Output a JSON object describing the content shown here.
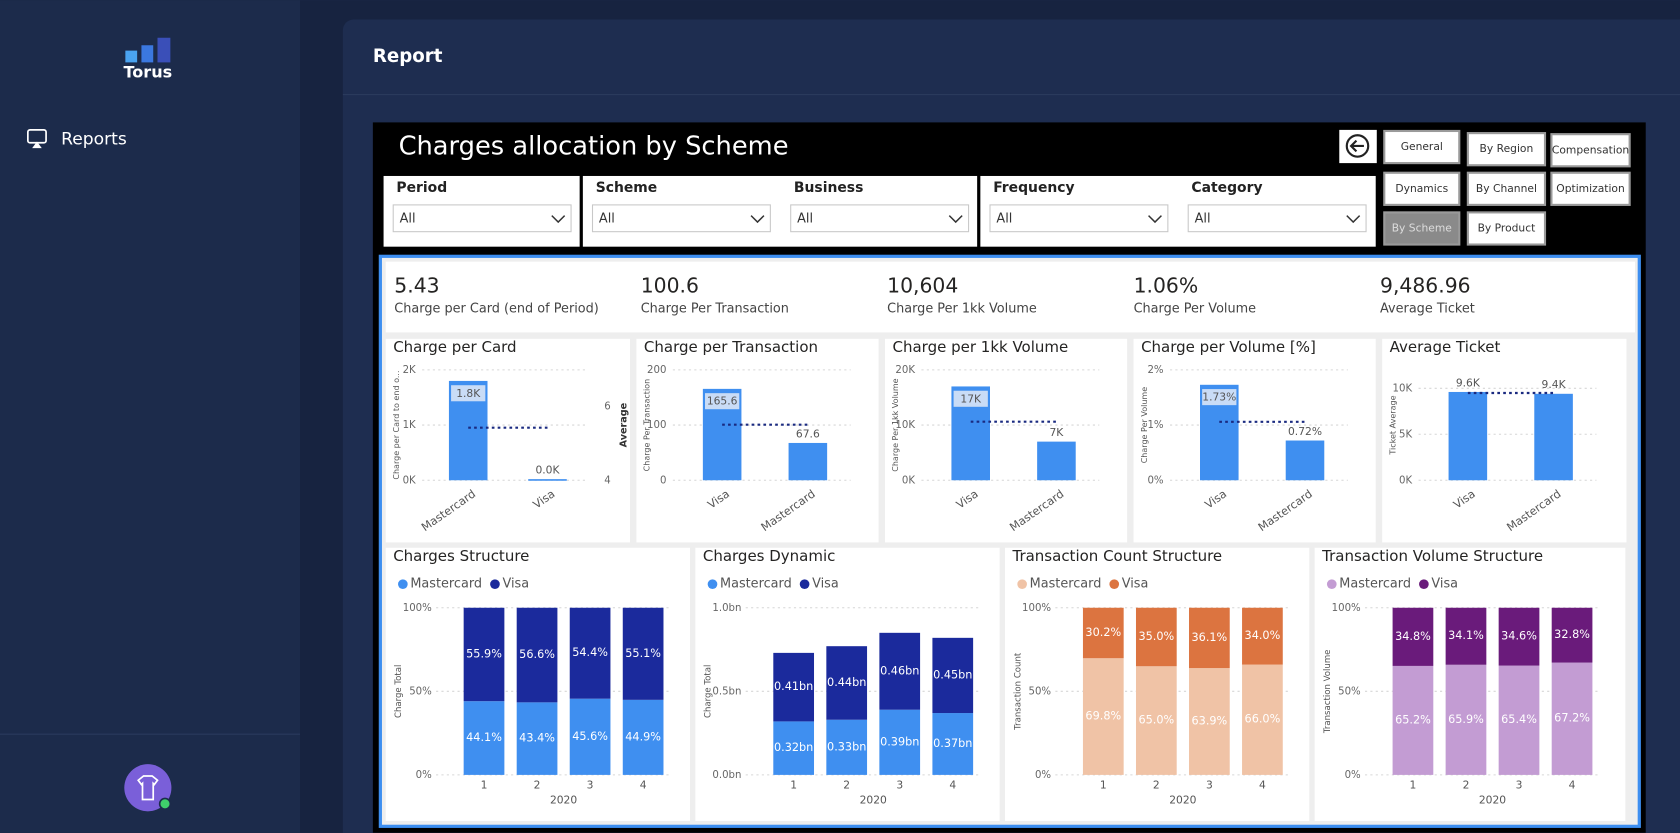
{
  "sidebar": {
    "logo": "Torus",
    "nav": [
      "Reports"
    ]
  },
  "header": {
    "title": "Report"
  },
  "report": {
    "title": "Charges allocation by Scheme",
    "filters": [
      {
        "label": "Period",
        "value": "All"
      },
      {
        "label": "Scheme",
        "value": "All"
      },
      {
        "label": "Business",
        "value": "All"
      },
      {
        "label": "Frequency",
        "value": "All"
      },
      {
        "label": "Category",
        "value": "All"
      }
    ],
    "buttons": [
      {
        "label": "General",
        "selected": false
      },
      {
        "label": "By Region",
        "selected": false
      },
      {
        "label": "Compensation",
        "selected": false
      },
      {
        "label": "Dynamics",
        "selected": false
      },
      {
        "label": "By Channel",
        "selected": false
      },
      {
        "label": "Optimization",
        "selected": false
      },
      {
        "label": "By Scheme",
        "selected": true
      },
      {
        "label": "By Product",
        "selected": false
      }
    ],
    "kpis": [
      {
        "value": "5.43",
        "label": "Charge per Card (end of Period)"
      },
      {
        "value": "100.6",
        "label": "Charge Per Transaction"
      },
      {
        "value": "10,604",
        "label": "Charge Per 1kk Volume"
      },
      {
        "value": "1.06%",
        "label": "Charge Per Volume"
      },
      {
        "value": "9,486.96",
        "label": "Average Ticket"
      }
    ]
  },
  "chart_data": [
    {
      "type": "bar",
      "title": "Charge per Card",
      "categories": [
        "Mastercard",
        "Visa"
      ],
      "values": [
        1800,
        20
      ],
      "value_labels": [
        "1.8K",
        "0.0K"
      ],
      "color": "#3f8ff0",
      "ylabel": "Charge per Card to end o...",
      "ylim": [
        0,
        2000
      ],
      "yticks": [
        {
          "value": 0,
          "label": "0K"
        },
        {
          "value": 1000,
          "label": "1K"
        },
        {
          "value": 2000,
          "label": "2K"
        }
      ],
      "grid": true,
      "average": 5.43,
      "average_axis": "y2",
      "average_color": "#1a2a80",
      "y2label": "Average",
      "y2lim": [
        4,
        7
      ],
      "y2ticks": [
        4,
        6
      ]
    },
    {
      "type": "bar",
      "title": "Charge per Transaction",
      "categories": [
        "Visa",
        "Mastercard"
      ],
      "values": [
        165.6,
        67.6
      ],
      "value_labels": [
        "165.6",
        "67.6"
      ],
      "color": "#3f8ff0",
      "ylabel": "Charge Per Transaction",
      "ylim": [
        0,
        200
      ],
      "yticks": [
        0,
        100,
        200
      ],
      "grid": true,
      "average": 100.6,
      "average_color": "#1a2a80"
    },
    {
      "type": "bar",
      "title": "Charge per 1kk Volume",
      "categories": [
        "Visa",
        "Mastercard"
      ],
      "values": [
        17000,
        7000
      ],
      "value_labels": [
        "17K",
        "7K"
      ],
      "color": "#3f8ff0",
      "ylabel": "Charge Per 1kk Volume",
      "ylim": [
        0,
        20000
      ],
      "yticks": [
        {
          "value": 0,
          "label": "0K"
        },
        {
          "value": 10000,
          "label": "10K"
        },
        {
          "value": 20000,
          "label": "20K"
        }
      ],
      "grid": true,
      "average": 10604,
      "average_color": "#1a2a80"
    },
    {
      "type": "bar",
      "title": "Charge per Volume [%]",
      "categories": [
        "Visa",
        "Mastercard"
      ],
      "values": [
        1.73,
        0.72
      ],
      "value_labels": [
        "1.73%",
        "0.72%"
      ],
      "color": "#3f8ff0",
      "ylabel": "Charge Per Volume",
      "ylim": [
        0,
        2
      ],
      "yticks": [
        {
          "value": 0,
          "label": "0%"
        },
        {
          "value": 1,
          "label": "1%"
        },
        {
          "value": 2,
          "label": "2%"
        }
      ],
      "grid": true,
      "average": 1.06,
      "average_color": "#1a2a80"
    },
    {
      "type": "bar",
      "title": "Average Ticket",
      "categories": [
        "Visa",
        "Mastercard"
      ],
      "values": [
        9600,
        9400
      ],
      "value_labels": [
        "9.6K",
        "9.4K"
      ],
      "color": "#3f8ff0",
      "ylabel": "Ticket Average",
      "ylim": [
        0,
        12000
      ],
      "yticks": [
        {
          "value": 0,
          "label": "0K"
        },
        {
          "value": 5000,
          "label": "5K"
        },
        {
          "value": 10000,
          "label": "10K"
        }
      ],
      "grid": true,
      "average": 9486.96,
      "average_color": "#1a2a80"
    },
    {
      "type": "stacked_bar",
      "title": "Charges Structure",
      "categories": [
        "1",
        "2",
        "3",
        "4"
      ],
      "xlabel": "2020",
      "ylabel": "Charge Total",
      "ylim": [
        0,
        100
      ],
      "yticks": [
        {
          "value": 0,
          "label": "0%"
        },
        {
          "value": 50,
          "label": "50%"
        },
        {
          "value": 100,
          "label": "100%"
        }
      ],
      "grid": true,
      "legend": "top-left",
      "series": [
        {
          "name": "Mastercard",
          "color": "#3f8ff0",
          "values": [
            44.1,
            43.4,
            45.6,
            44.9
          ],
          "value_labels": [
            "44.1%",
            "43.4%",
            "45.6%",
            "44.9%"
          ]
        },
        {
          "name": "Visa",
          "color": "#1b2a9c",
          "values": [
            55.9,
            56.6,
            54.4,
            55.1
          ],
          "value_labels": [
            "55.9%",
            "56.6%",
            "54.4%",
            "55.1%"
          ]
        }
      ]
    },
    {
      "type": "stacked_bar",
      "title": "Charges Dynamic",
      "categories": [
        "1",
        "2",
        "3",
        "4"
      ],
      "xlabel": "2020",
      "ylabel": "Charge Total",
      "ylim": [
        0,
        1
      ],
      "yticks": [
        {
          "value": 0,
          "label": "0.0bn"
        },
        {
          "value": 0.5,
          "label": "0.5bn"
        },
        {
          "value": 1,
          "label": "1.0bn"
        }
      ],
      "grid": true,
      "legend": "top-left",
      "series": [
        {
          "name": "Mastercard",
          "color": "#3f8ff0",
          "values": [
            0.32,
            0.33,
            0.39,
            0.37
          ],
          "value_labels": [
            "0.32bn",
            "0.33bn",
            "0.39bn",
            "0.37bn"
          ]
        },
        {
          "name": "Visa",
          "color": "#1b2a9c",
          "values": [
            0.41,
            0.44,
            0.46,
            0.45
          ],
          "value_labels": [
            "0.41bn",
            "0.44bn",
            "0.46bn",
            "0.45bn"
          ]
        }
      ]
    },
    {
      "type": "stacked_bar",
      "title": "Transaction Count Structure",
      "categories": [
        "1",
        "2",
        "3",
        "4"
      ],
      "xlabel": "2020",
      "ylabel": "Transaction Count",
      "ylim": [
        0,
        100
      ],
      "yticks": [
        {
          "value": 0,
          "label": "0%"
        },
        {
          "value": 50,
          "label": "50%"
        },
        {
          "value": 100,
          "label": "100%"
        }
      ],
      "grid": true,
      "legend": "top-left",
      "series": [
        {
          "name": "Mastercard",
          "color": "#f0c3a6",
          "values": [
            69.8,
            65.0,
            63.9,
            66.0
          ],
          "value_labels": [
            "69.8%",
            "65.0%",
            "63.9%",
            "66.0%"
          ]
        },
        {
          "name": "Visa",
          "color": "#dc7440",
          "values": [
            30.2,
            35.0,
            36.1,
            34.0
          ],
          "value_labels": [
            "30.2%",
            "35.0%",
            "36.1%",
            "34.0%"
          ]
        }
      ]
    },
    {
      "type": "stacked_bar",
      "title": "Transaction Volume Structure",
      "categories": [
        "1",
        "2",
        "3",
        "4"
      ],
      "xlabel": "2020",
      "ylabel": "Transaction Volume",
      "ylim": [
        0,
        100
      ],
      "yticks": [
        {
          "value": 0,
          "label": "0%"
        },
        {
          "value": 50,
          "label": "50%"
        },
        {
          "value": 100,
          "label": "100%"
        }
      ],
      "grid": true,
      "legend": "top-left",
      "series": [
        {
          "name": "Mastercard",
          "color": "#c39cd3",
          "values": [
            65.2,
            65.9,
            65.4,
            67.2
          ],
          "value_labels": [
            "65.2%",
            "65.9%",
            "65.4%",
            "67.2%"
          ]
        },
        {
          "name": "Visa",
          "color": "#6a1b7b",
          "values": [
            34.8,
            34.1,
            34.6,
            32.8
          ],
          "value_labels": [
            "34.8%",
            "34.1%",
            "34.6%",
            "32.8%"
          ]
        }
      ]
    }
  ]
}
